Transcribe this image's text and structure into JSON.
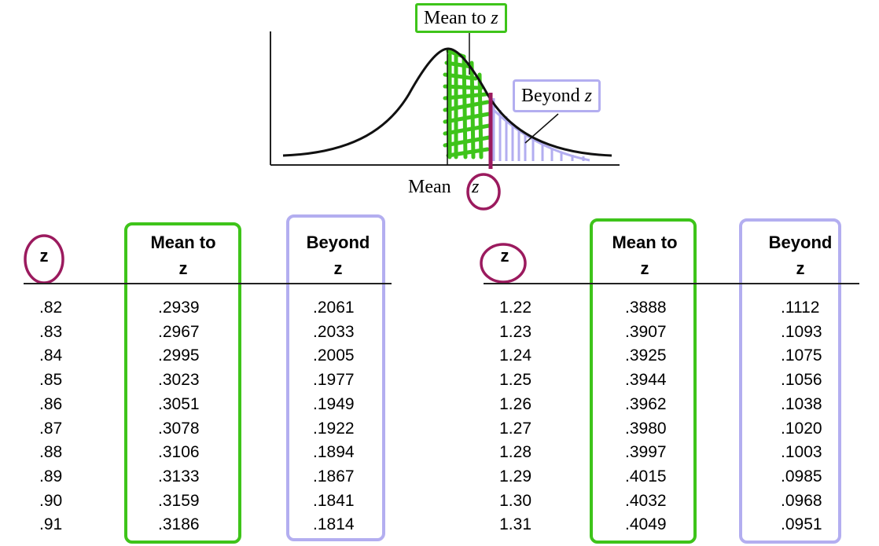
{
  "figure": {
    "label_mean_to_z": "Mean to",
    "label_beyond_z": "Beyond",
    "label_z_italic": "z",
    "axis_mean": "Mean",
    "axis_z": "z"
  },
  "tables": {
    "left": {
      "headers": {
        "z": "z",
        "mean_to": "Mean to",
        "mean_to_z": "z",
        "beyond": "Beyond",
        "beyond_z": "z"
      },
      "z": [
        ".82",
        ".83",
        ".84",
        ".85",
        ".86",
        ".87",
        ".88",
        ".89",
        ".90",
        ".91"
      ],
      "mean_to_z": [
        ".2939",
        ".2967",
        ".2995",
        ".3023",
        ".3051",
        ".3078",
        ".3106",
        ".3133",
        ".3159",
        ".3186"
      ],
      "beyond_z": [
        ".2061",
        ".2033",
        ".2005",
        ".1977",
        ".1949",
        ".1922",
        ".1894",
        ".1867",
        ".1841",
        ".1814"
      ]
    },
    "right": {
      "headers": {
        "z": "z",
        "mean_to": "Mean to",
        "mean_to_z": "z",
        "beyond": "Beyond",
        "beyond_z": "z"
      },
      "z": [
        "1.22",
        "1.23",
        "1.24",
        "1.25",
        "1.26",
        "1.27",
        "1.28",
        "1.29",
        "1.30",
        "1.31"
      ],
      "mean_to_z": [
        ".3888",
        ".3907",
        ".3925",
        ".3944",
        ".3962",
        ".3980",
        ".3997",
        ".4015",
        ".4032",
        ".4049"
      ],
      "beyond_z": [
        ".1112",
        ".1093",
        ".1075",
        ".1056",
        ".1038",
        ".1020",
        ".1003",
        ".0985",
        ".0968",
        ".0951"
      ]
    }
  },
  "colors": {
    "mean_to_highlight": "#3ec41a",
    "beyond_highlight": "#b3aef0",
    "z_circle": "#9b1a5e"
  }
}
